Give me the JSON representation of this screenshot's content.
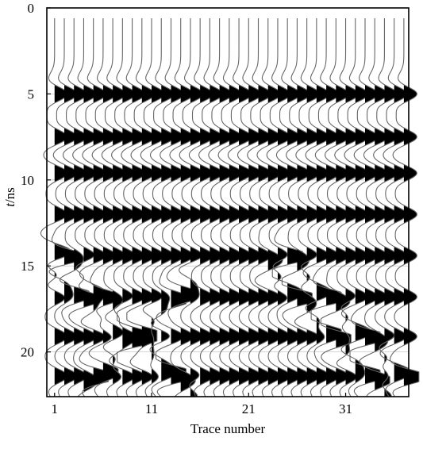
{
  "chart_data": {
    "type": "wiggle",
    "xlabel": "Trace number",
    "ylabel_italic": "t",
    "ylabel_unit": "/ns",
    "x_ticks": [
      1,
      11,
      21,
      31
    ],
    "y_ticks": [
      0,
      5,
      10,
      15,
      20
    ],
    "xlim": [
      0.2,
      37.5
    ],
    "ylim": [
      0,
      22.6
    ],
    "trace_numbers": [
      1,
      2,
      3,
      4,
      5,
      6,
      7,
      8,
      9,
      10,
      11,
      12,
      13,
      14,
      15,
      16,
      17,
      18,
      19,
      20,
      21,
      22,
      23,
      24,
      25,
      26,
      27,
      28,
      29,
      30,
      31,
      32,
      33,
      34,
      35,
      36,
      37
    ],
    "grid": "horizontal",
    "fill": "positive lobes black",
    "reflections": [
      {
        "name": "",
        "kind": "flat",
        "t": 5.0
      },
      {
        "name": "",
        "kind": "flat",
        "t": 7.5
      },
      {
        "name": "",
        "kind": "flat",
        "t": 9.6
      },
      {
        "name": "",
        "kind": "flat",
        "t": 12.0
      },
      {
        "name": "",
        "kind": "flat",
        "t": 14.4
      },
      {
        "name": "",
        "kind": "flat",
        "t": 16.8
      },
      {
        "name": "",
        "kind": "flat",
        "t": 19.1
      },
      {
        "name": "",
        "kind": "flat",
        "t": 21.4
      },
      {
        "name": "",
        "kind": "linear",
        "traces": [
          1,
          15
        ],
        "t": [
          15.5,
          22.5
        ]
      },
      {
        "name": "",
        "kind": "linear",
        "traces": [
          1,
          13
        ],
        "t": [
          14.0,
          21.0
        ]
      },
      {
        "name": "",
        "kind": "linear",
        "traces": [
          4,
          15
        ],
        "t": [
          22.0,
          16.0
        ]
      },
      {
        "name": "",
        "kind": "linear",
        "traces": [
          23,
          35
        ],
        "t": [
          15.0,
          22.5
        ]
      },
      {
        "name": "",
        "kind": "linear",
        "traces": [
          25,
          37
        ],
        "t": [
          14.5,
          21.5
        ]
      }
    ]
  }
}
